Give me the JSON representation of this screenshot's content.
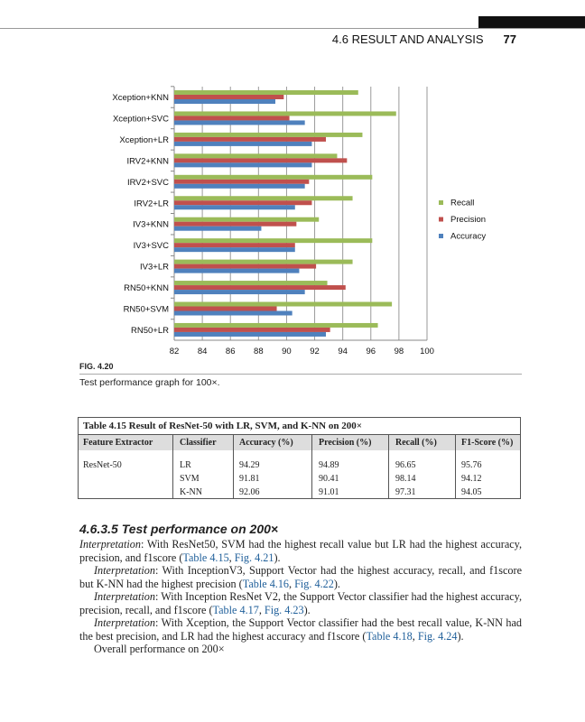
{
  "header": {
    "section": "4.6 RESULT AND ANALYSIS",
    "page": "77"
  },
  "figure": {
    "label": "FIG. 4.20",
    "caption": "Test performance graph for 100×."
  },
  "chart_data": {
    "type": "bar",
    "orientation": "horizontal",
    "categories": [
      "Xception+KNN",
      "Xception+SVC",
      "Xception+LR",
      "IRV2+KNN",
      "IRV2+SVC",
      "IRV2+LR",
      "IV3+KNN",
      "IV3+SVC",
      "IV3+LR",
      "RN50+KNN",
      "RN50+SVM",
      "RN50+LR"
    ],
    "series": [
      {
        "name": "Recall",
        "color": "#9bbb59",
        "values": [
          95.1,
          97.8,
          95.4,
          93.6,
          96.1,
          94.7,
          92.3,
          96.1,
          94.7,
          92.9,
          97.5,
          96.5
        ]
      },
      {
        "name": "Precision",
        "color": "#c0504d",
        "values": [
          89.8,
          90.2,
          92.8,
          94.3,
          91.6,
          91.8,
          90.7,
          90.6,
          92.1,
          94.2,
          89.3,
          93.1
        ]
      },
      {
        "name": "Accuracy",
        "color": "#4f81bd",
        "values": [
          89.2,
          91.3,
          91.8,
          91.8,
          91.3,
          90.6,
          88.2,
          90.6,
          90.9,
          91.3,
          90.4,
          92.8
        ]
      }
    ],
    "xlim": [
      82,
      100
    ],
    "xticks": [
      "82",
      "84",
      "86",
      "88",
      "90",
      "92",
      "94",
      "96",
      "98",
      "100"
    ],
    "grid": true,
    "legend": "right"
  },
  "table": {
    "title": "Table 4.15  Result of ResNet-50 with LR, SVM, and K-NN on 200×",
    "headers": [
      "Feature Extractor",
      "Classifier",
      "Accuracy (%)",
      "Precision (%)",
      "Recall (%)",
      "F1-Score (%)"
    ],
    "extractor": "ResNet-50",
    "rows": [
      [
        "LR",
        "94.29",
        "94.89",
        "96.65",
        "95.76"
      ],
      [
        "SVM",
        "91.81",
        "90.41",
        "98.14",
        "94.12"
      ],
      [
        "K-NN",
        "92.06",
        "91.01",
        "97.31",
        "94.05"
      ]
    ]
  },
  "section": {
    "title": "4.6.3.5 Test performance on 200×"
  },
  "paragraphs": [
    {
      "label": "Interpretation",
      "text": ": With ResNet50, SVM had the highest recall value but LR had the highest accuracy, precision, and f1score (",
      "t": "Table 4.15",
      "f": "Fig. 4.21",
      "end": ")."
    },
    {
      "label": "Interpretation",
      "text": ": With InceptionV3, Support Vector had the highest accuracy, recall, and f1score but K-NN had the highest precision (",
      "t": "Table 4.16",
      "f": "Fig. 4.22",
      "end": ")."
    },
    {
      "label": "Interpretation",
      "text": ": With Inception ResNet V2, the Support Vector classifier had the highest accuracy, precision, recall, and f1score (",
      "t": "Table 4.17",
      "f": "Fig. 4.23",
      "end": ")."
    },
    {
      "label": "Interpretation",
      "text": ": With Xception, the Support Vector classifier had the best recall value, K-NN had the best precision, and LR had the highest accuracy and f1score (",
      "t": "Table 4.18",
      "f": "Fig. 4.24",
      "end": ")."
    }
  ],
  "last_line": "Overall performance on 200×",
  "sep": ", "
}
